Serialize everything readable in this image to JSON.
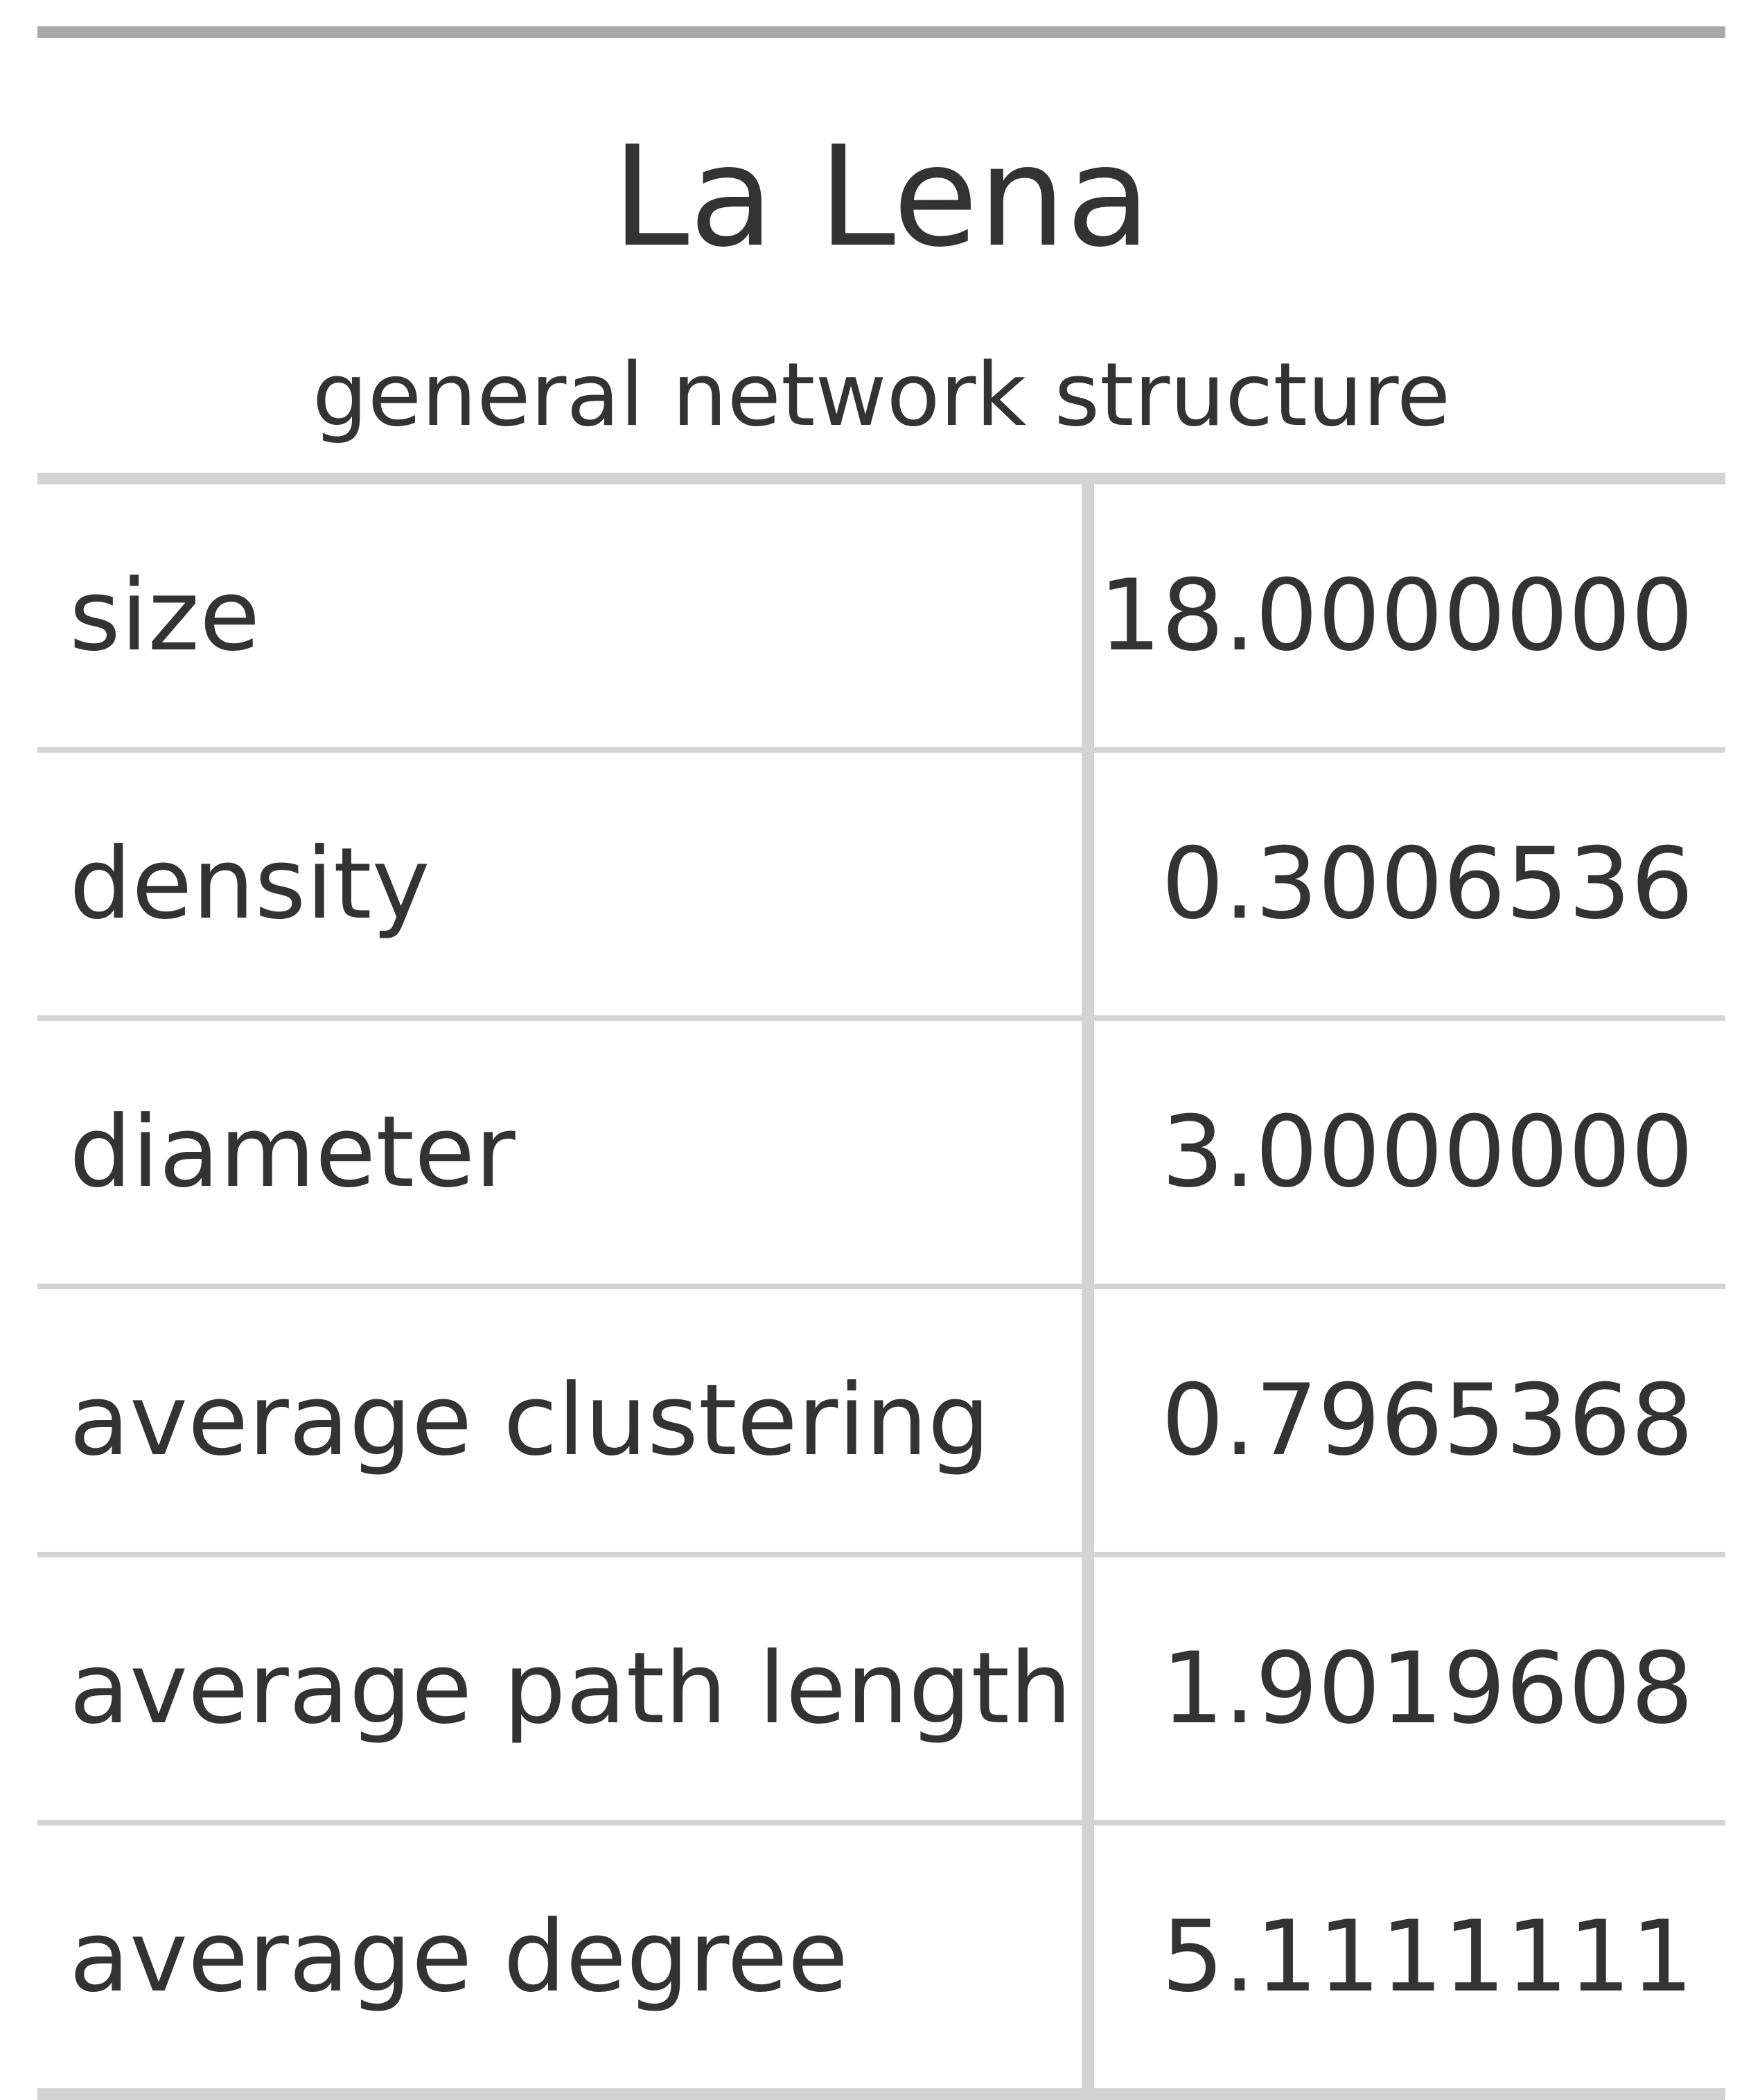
{
  "table": {
    "title": "La Lena",
    "subtitle": "general network structure",
    "rows": [
      {
        "label": "size",
        "value": "18.0000000"
      },
      {
        "label": "density",
        "value": "0.3006536"
      },
      {
        "label": "diameter",
        "value": "3.0000000"
      },
      {
        "label": "average clustering",
        "value": "0.7965368"
      },
      {
        "label": "average path length",
        "value": "1.9019608"
      },
      {
        "label": "average degree",
        "value": "5.1111111"
      }
    ]
  },
  "colors": {
    "text": "#333333",
    "top_rule": "#a8a8a8",
    "grid_lines": "#d3d3d3",
    "background": "#ffffff"
  }
}
